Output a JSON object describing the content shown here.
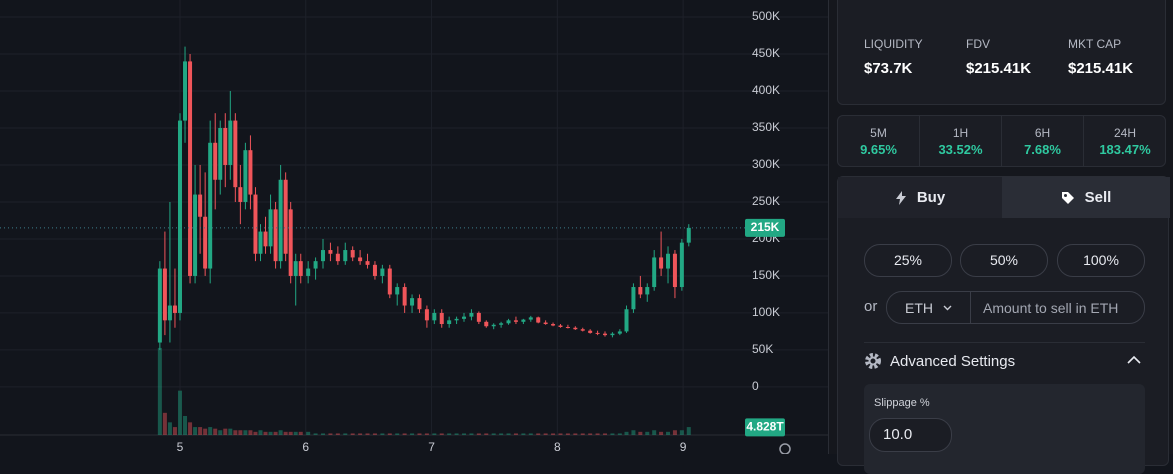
{
  "chart_data": {
    "type": "candlestick",
    "xlim": [
      3.569,
      9.492
    ],
    "ylim": [
      -65000,
      523000
    ],
    "xticks": [
      5,
      6,
      7,
      8,
      9
    ],
    "yticks": [
      {
        "value": 500000,
        "label": "500K"
      },
      {
        "value": 450000,
        "label": "450K"
      },
      {
        "value": 400000,
        "label": "400K"
      },
      {
        "value": 350000,
        "label": "350K"
      },
      {
        "value": 300000,
        "label": "300K"
      },
      {
        "value": 250000,
        "label": "250K"
      },
      {
        "value": 200000,
        "label": "200K"
      },
      {
        "value": 150000,
        "label": "150K"
      },
      {
        "value": 100000,
        "label": "100K"
      },
      {
        "value": 50000,
        "label": "50K"
      },
      0
    ],
    "up_color": "#22a884",
    "down_color": "#f0555a",
    "grid": true,
    "x": [
      4.84,
      4.88,
      4.92,
      4.96,
      5.0,
      5.04,
      5.08,
      5.12,
      5.16,
      5.2,
      5.24,
      5.28,
      5.32,
      5.36,
      5.4,
      5.44,
      5.48,
      5.52,
      5.56,
      5.6,
      5.64,
      5.68,
      5.72,
      5.76,
      5.8,
      5.84,
      5.88,
      5.92,
      5.96,
      6.019,
      6.078,
      6.137,
      6.196,
      6.255,
      6.314,
      6.373,
      6.432,
      6.491,
      6.55,
      6.609,
      6.668,
      6.727,
      6.786,
      6.845,
      6.904,
      6.963,
      7.022,
      7.081,
      7.14,
      7.199,
      7.258,
      7.317,
      7.376,
      7.435,
      7.494,
      7.553,
      7.612,
      7.671,
      7.73,
      7.789,
      7.848,
      7.907,
      7.966,
      8.025,
      8.084,
      8.143,
      8.202,
      8.261,
      8.32,
      8.379,
      8.438,
      8.497,
      8.55,
      8.605,
      8.66,
      8.715,
      8.77,
      8.825,
      8.88,
      8.935,
      8.99,
      9.045
    ],
    "open": [
      60000,
      160000,
      90000,
      110000,
      100000,
      360000,
      440000,
      150000,
      260000,
      230000,
      160000,
      330000,
      280000,
      350000,
      300000,
      360000,
      270000,
      250000,
      320000,
      260000,
      180000,
      210000,
      190000,
      240000,
      170000,
      280000,
      240000,
      150000,
      170000,
      150000,
      160000,
      170000,
      185000,
      180000,
      170000,
      185000,
      175000,
      170000,
      165000,
      150000,
      160000,
      125000,
      135000,
      110000,
      120000,
      105000,
      90000,
      100000,
      85000,
      90000,
      92000,
      95000,
      100000,
      88000,
      82000,
      84000,
      86000,
      90000,
      88000,
      91000,
      94000,
      87000,
      85000,
      83000,
      81000,
      80000,
      78000,
      76000,
      73000,
      72000,
      70000,
      72000,
      75000,
      105000,
      135000,
      125000,
      135000,
      175000,
      160000,
      180000,
      135000,
      195000
    ],
    "high": [
      170000,
      210000,
      250000,
      160000,
      370000,
      460000,
      450000,
      300000,
      300000,
      290000,
      360000,
      370000,
      360000,
      370000,
      400000,
      370000,
      300000,
      330000,
      340000,
      270000,
      220000,
      230000,
      260000,
      250000,
      300000,
      290000,
      250000,
      180000,
      180000,
      170000,
      175000,
      200000,
      195000,
      190000,
      195000,
      190000,
      185000,
      180000,
      170000,
      165000,
      165000,
      140000,
      140000,
      125000,
      125000,
      110000,
      105000,
      105000,
      95000,
      95000,
      100000,
      105000,
      102000,
      90000,
      86000,
      88000,
      92000,
      95000,
      92000,
      96000,
      95000,
      90000,
      87000,
      85000,
      84000,
      82000,
      80000,
      78000,
      76000,
      75000,
      74000,
      78000,
      110000,
      140000,
      150000,
      140000,
      185000,
      210000,
      190000,
      185000,
      200000,
      220000
    ],
    "low": [
      50000,
      70000,
      60000,
      80000,
      90000,
      330000,
      140000,
      140000,
      180000,
      150000,
      140000,
      240000,
      260000,
      270000,
      280000,
      250000,
      220000,
      240000,
      240000,
      170000,
      170000,
      180000,
      180000,
      160000,
      160000,
      170000,
      140000,
      110000,
      140000,
      140000,
      145000,
      160000,
      170000,
      165000,
      165000,
      170000,
      165000,
      160000,
      145000,
      140000,
      120000,
      110000,
      100000,
      100000,
      100000,
      80000,
      85000,
      80000,
      80000,
      85000,
      88000,
      90000,
      85000,
      80000,
      78000,
      80000,
      84000,
      85000,
      85000,
      88000,
      86000,
      84000,
      82000,
      80000,
      79000,
      77000,
      75000,
      72000,
      70000,
      68000,
      67000,
      70000,
      73000,
      100000,
      120000,
      115000,
      130000,
      150000,
      140000,
      120000,
      130000,
      190000
    ],
    "close": [
      160000,
      90000,
      110000,
      100000,
      360000,
      440000,
      150000,
      260000,
      230000,
      160000,
      330000,
      280000,
      350000,
      300000,
      360000,
      270000,
      250000,
      320000,
      260000,
      180000,
      210000,
      190000,
      240000,
      170000,
      280000,
      180000,
      150000,
      170000,
      150000,
      160000,
      170000,
      185000,
      180000,
      170000,
      185000,
      175000,
      170000,
      165000,
      150000,
      160000,
      125000,
      135000,
      110000,
      120000,
      105000,
      90000,
      100000,
      85000,
      90000,
      92000,
      95000,
      100000,
      88000,
      82000,
      84000,
      86000,
      90000,
      88000,
      91000,
      94000,
      87000,
      85000,
      83000,
      81000,
      80000,
      78000,
      76000,
      73000,
      72000,
      70000,
      72000,
      75000,
      105000,
      135000,
      125000,
      135000,
      175000,
      160000,
      180000,
      135000,
      195000,
      215000
    ],
    "volume": [
      55,
      14,
      8,
      5,
      28,
      12,
      8,
      5,
      5,
      4,
      5,
      4,
      3,
      4,
      4,
      3,
      3,
      3,
      3,
      2,
      3,
      2,
      2,
      2,
      3,
      2,
      2,
      2,
      2,
      2,
      1,
      1,
      1,
      1,
      1,
      1,
      1,
      1,
      1,
      1,
      1,
      1,
      1,
      1,
      1,
      1,
      1,
      1,
      1,
      1,
      1,
      1,
      1,
      1,
      1,
      1,
      1,
      1,
      1,
      1,
      1,
      1,
      1,
      1,
      1,
      1,
      1,
      1,
      1,
      1,
      1,
      1,
      2,
      3,
      2,
      2,
      3,
      2,
      2,
      3,
      3,
      5
    ],
    "volume_ylim": [
      0,
      60
    ],
    "price_tag": {
      "value": 215000,
      "label": "215K"
    },
    "volume_tag": {
      "value": 4.828,
      "label": "4.828T"
    }
  },
  "stats": [
    {
      "label": "LIQUIDITY",
      "value": "$73.7K"
    },
    {
      "label": "FDV",
      "value": "$215.41K"
    },
    {
      "label": "MKT CAP",
      "value": "$215.41K"
    }
  ],
  "changes": [
    {
      "period": "5M",
      "value": "9.65%"
    },
    {
      "period": "1H",
      "value": "33.52%"
    },
    {
      "period": "6H",
      "value": "7.68%"
    },
    {
      "period": "24H",
      "value": "183.47%"
    }
  ],
  "tabs": [
    "Buy",
    "Sell"
  ],
  "amounts": [
    "25%",
    "50%",
    "100%"
  ],
  "or": "or",
  "token": "ETH",
  "placeholder": "Amount to sell in ETH",
  "advanced": "Advanced Settings",
  "slippage_label": "Slippage %",
  "slippage_value": "10.0"
}
